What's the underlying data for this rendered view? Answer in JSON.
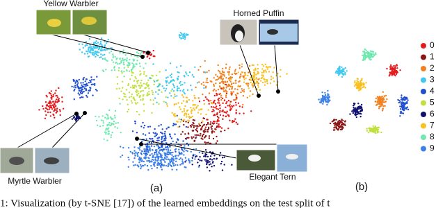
{
  "panel_a": {
    "label": "(a)",
    "annotations": [
      {
        "label": "Yellow Warbler"
      },
      {
        "label": "Horned Puffin"
      },
      {
        "label": "Myrtle Warbler"
      },
      {
        "label": "Elegant Tern"
      }
    ]
  },
  "panel_b": {
    "label": "(b)"
  },
  "legend": [
    {
      "label": "0",
      "color": "#e41a1c"
    },
    {
      "label": "1",
      "color": "#8b1414"
    },
    {
      "label": "2",
      "color": "#f08020"
    },
    {
      "label": "3",
      "color": "#40c8f0"
    },
    {
      "label": "4",
      "color": "#2050d0"
    },
    {
      "label": "5",
      "color": "#c0e040"
    },
    {
      "label": "6",
      "color": "#101070"
    },
    {
      "label": "7",
      "color": "#f8c020"
    },
    {
      "label": "8",
      "color": "#70e8b0"
    },
    {
      "label": "9",
      "color": "#3c80e8"
    }
  ],
  "caption": "1: Visualization (by t-SNE [17]) of the learned embeddings on the test split of t"
}
